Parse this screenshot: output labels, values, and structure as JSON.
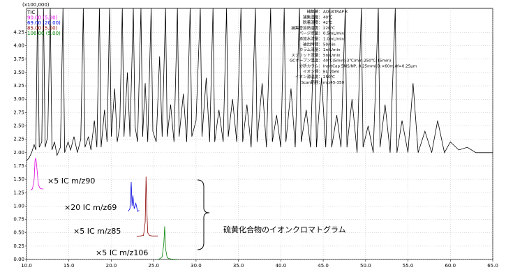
{
  "chart_data": {
    "type": "line",
    "y_unit_label": "(x100,000)",
    "xlim": [
      10.0,
      65.0
    ],
    "xticks": [
      {
        "value": 10,
        "label": "10.0"
      },
      {
        "value": 15,
        "label": "15.0"
      },
      {
        "value": 20,
        "label": "20.0"
      },
      {
        "value": 25,
        "label": "25.0"
      },
      {
        "value": 30,
        "label": "30.0"
      },
      {
        "value": 35,
        "label": "35.0"
      },
      {
        "value": 40,
        "label": "40.0"
      },
      {
        "value": 45,
        "label": "45.0"
      },
      {
        "value": 50,
        "label": "50.0"
      },
      {
        "value": 55,
        "label": "55.0"
      },
      {
        "value": 60,
        "label": "60.0"
      },
      {
        "value": 65,
        "label": "65.0"
      }
    ],
    "ylim": [
      0,
      4.7
    ],
    "yticks": [
      {
        "value": 0,
        "label": "0.00"
      },
      {
        "value": 0.25,
        "label": "0.25"
      },
      {
        "value": 0.5,
        "label": "0.50"
      },
      {
        "value": 0.75,
        "label": "0.75"
      },
      {
        "value": 1,
        "label": "1.00"
      },
      {
        "value": 1.25,
        "label": "1.25"
      },
      {
        "value": 1.5,
        "label": "1.50"
      },
      {
        "value": 1.75,
        "label": "1.75"
      },
      {
        "value": 2,
        "label": "2.00"
      },
      {
        "value": 2.25,
        "label": "2.25"
      },
      {
        "value": 2.5,
        "label": "2.50"
      },
      {
        "value": 2.75,
        "label": "2.75"
      },
      {
        "value": 3,
        "label": "3.00"
      },
      {
        "value": 3.25,
        "label": "3.25"
      },
      {
        "value": 3.5,
        "label": "3.50"
      },
      {
        "value": 3.75,
        "label": "3.75"
      },
      {
        "value": 4,
        "label": "4.00"
      },
      {
        "value": 4.25,
        "label": "4.25"
      }
    ],
    "grid": true,
    "legend": "top-left",
    "series": [
      {
        "name": "TIC",
        "color": "#000000",
        "x": [
          10.0,
          10.3,
          10.6,
          10.9,
          11.1,
          11.3,
          11.5,
          11.8,
          12.0,
          12.2,
          12.5,
          12.8,
          13.0,
          13.3,
          13.6,
          14.0,
          14.3,
          14.5,
          14.9,
          15.2,
          15.6,
          16.0,
          16.4,
          16.7,
          16.9,
          17.3,
          17.6,
          18.0,
          18.3,
          18.6,
          18.8,
          19.2,
          19.5,
          19.8,
          20.0,
          20.4,
          20.7,
          21.0,
          21.3,
          21.5,
          21.9,
          22.2,
          22.6,
          22.8,
          23.1,
          23.5,
          23.7,
          24.0,
          24.3,
          24.7,
          24.9,
          25.3,
          25.7,
          26.0,
          26.4,
          26.6,
          27.0,
          27.4,
          27.8,
          28.0,
          28.5,
          28.9,
          29.3,
          29.5,
          30.0,
          30.5,
          30.7,
          31.2,
          31.6,
          32.0,
          32.2,
          32.7,
          33.2,
          33.6,
          33.8,
          34.3,
          34.8,
          35.3,
          35.5,
          36.0,
          36.5,
          37.0,
          37.2,
          37.8,
          38.3,
          38.8,
          39.0,
          39.5,
          40.0,
          40.4,
          40.6,
          41.2,
          41.7,
          42.2,
          42.4,
          43.0,
          43.5,
          44.0,
          44.2,
          44.8,
          45.3,
          45.8,
          46.0,
          46.6,
          47.1,
          47.6,
          47.8,
          48.4,
          49.0,
          49.5,
          49.7,
          50.3,
          50.9,
          51.5,
          51.7,
          52.3,
          52.9,
          53.5,
          53.7,
          54.3,
          55.0,
          55.6,
          56.2,
          57.0,
          57.8,
          58.5,
          59.3,
          60.0,
          61.0,
          62.0,
          63.0,
          64.0,
          65.0
        ],
        "values": [
          1.85,
          1.9,
          2.0,
          2.15,
          2.05,
          4.7,
          2.1,
          2.2,
          4.7,
          2.1,
          2.3,
          4.7,
          2.05,
          2.2,
          1.95,
          2.1,
          4.7,
          2.0,
          2.2,
          2.05,
          2.3,
          2.0,
          2.25,
          4.7,
          2.1,
          2.3,
          2.05,
          2.6,
          2.1,
          4.7,
          2.1,
          2.8,
          2.2,
          4.7,
          2.3,
          3.2,
          2.2,
          2.5,
          4.7,
          2.3,
          3.5,
          2.3,
          4.7,
          2.5,
          2.2,
          4.7,
          2.3,
          3.3,
          2.2,
          4.7,
          2.4,
          2.2,
          3.8,
          2.3,
          4.7,
          2.3,
          2.9,
          2.2,
          4.7,
          2.3,
          3.1,
          2.2,
          4.7,
          2.3,
          2.6,
          4.7,
          2.3,
          3.4,
          2.2,
          4.7,
          2.2,
          2.8,
          2.2,
          4.7,
          2.3,
          3.0,
          2.2,
          4.7,
          2.2,
          2.9,
          2.1,
          4.7,
          2.2,
          3.3,
          2.1,
          4.7,
          2.2,
          2.7,
          2.1,
          4.7,
          2.2,
          3.2,
          2.1,
          4.7,
          2.2,
          2.8,
          2.1,
          4.7,
          2.1,
          3.4,
          2.1,
          4.7,
          2.1,
          2.7,
          2.1,
          4.7,
          2.1,
          3.0,
          2.0,
          4.7,
          2.1,
          2.5,
          2.0,
          4.7,
          2.1,
          2.9,
          2.0,
          4.7,
          2.0,
          2.6,
          2.0,
          3.3,
          2.0,
          2.4,
          2.0,
          2.6,
          2.0,
          2.2,
          2.05,
          2.1,
          2.0,
          2.0,
          2.0
        ]
      },
      {
        "name": "90.00 (5.00)",
        "color": "#e000e0",
        "x": [
          10.5,
          10.7,
          10.9,
          11.0,
          11.1,
          11.2,
          11.4,
          11.6,
          11.8,
          12.0
        ],
        "values": [
          1.3,
          1.32,
          1.5,
          1.85,
          1.9,
          1.75,
          1.4,
          1.33,
          1.32,
          1.32
        ]
      },
      {
        "name": "69.00 (20.00)",
        "color": "#0000e0",
        "x": [
          22.0,
          22.2,
          22.35,
          22.45,
          22.55,
          22.7,
          22.9,
          23.1,
          23.3
        ],
        "values": [
          0.9,
          0.95,
          1.45,
          1.0,
          1.2,
          0.95,
          1.05,
          0.9,
          0.92
        ]
      },
      {
        "name": "85.00 (5.00)",
        "color": "#8b0000",
        "x": [
          23.0,
          23.4,
          23.8,
          24.0,
          24.1,
          24.2,
          24.3,
          24.5,
          24.8,
          25.5
        ],
        "values": [
          0.43,
          0.44,
          0.45,
          0.7,
          1.55,
          0.9,
          0.5,
          0.45,
          0.44,
          0.44
        ]
      },
      {
        "name": "106.00 (5.00)",
        "color": "#008000",
        "x": [
          25.5,
          25.8,
          26.0,
          26.2,
          26.3,
          26.4,
          26.6,
          27.0,
          28.0
        ],
        "values": [
          0.0,
          0.02,
          0.05,
          0.3,
          0.62,
          0.2,
          0.03,
          0.01,
          0.0
        ]
      }
    ],
    "annotations": [
      "×5  IC m/z90",
      "×20  IC m/z69",
      "×5  IC m/z85",
      "×5  IC m/z106",
      "硫黄化合物のイオンクロマトグラム"
    ],
    "conditions": [
      {
        "label": "捕集管：",
        "value": "AQUATRAP K"
      },
      {
        "label": "捕集温度：",
        "value": "40℃"
      },
      {
        "label": "脱着温度：",
        "value": "42℃"
      },
      {
        "label": "捕集管加熱温度：",
        "value": "220℃"
      },
      {
        "label": "パージ流量：",
        "value": "0.5mL/min"
      },
      {
        "label": "添加水流量：",
        "value": "1.0mL/min"
      },
      {
        "label": "抽出時間：",
        "value": "50min"
      },
      {
        "label": "カラム流量：",
        "value": "1mL/min"
      },
      {
        "label": "スプリット流量：",
        "value": "5mL/min"
      },
      {
        "label": "GCオーブン温度：",
        "value": "40℃(5min)-3℃/min-250℃(15min)"
      },
      {
        "label": "分析カラム：",
        "value": "InertCap 5MS/NP, 0.25mmI.D.×60m,df=0.25μm"
      },
      {
        "label": "イオン源：",
        "value": "EI, 70eV"
      },
      {
        "label": "イオン源温度：",
        "value": "250℃"
      },
      {
        "label": "Scan範囲：",
        "value": "m/z45-350"
      }
    ]
  }
}
